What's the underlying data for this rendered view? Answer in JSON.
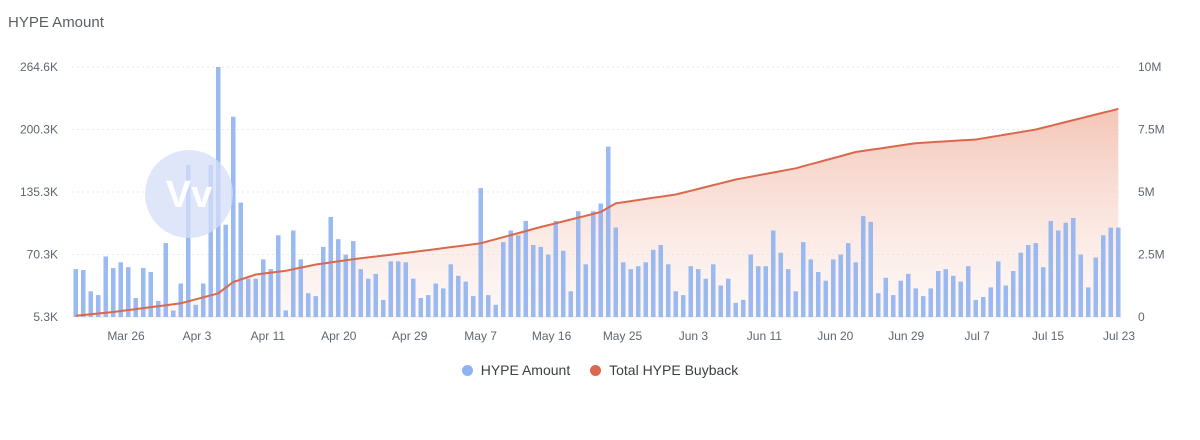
{
  "title": "HYPE Amount",
  "colors": {
    "bar": "#8fb2f0",
    "line": "#d9694d",
    "area_top": "#f3c0b0",
    "grid": "#e6e8ec"
  },
  "legend": {
    "bar_label": "HYPE Amount",
    "line_label": "Total HYPE Buyback"
  },
  "chart_data": {
    "type": "bar+line",
    "title": "HYPE Amount",
    "categories_ticks": [
      "Mar 26",
      "Apr 3",
      "Apr 11",
      "Apr 20",
      "Apr 29",
      "May 7",
      "May 16",
      "May 25",
      "Jun 3",
      "Jun 11",
      "Jun 20",
      "Jun 29",
      "Jul 7",
      "Jul 15",
      "Jul 23"
    ],
    "left_axis": {
      "ticks": [
        "5.3K",
        "70.3K",
        "135.3K",
        "200.3K",
        "264.6K"
      ],
      "range": [
        5300,
        264600
      ]
    },
    "right_axis": {
      "ticks": [
        "0",
        "2.5M",
        "5M",
        "7.5M",
        "10M"
      ],
      "range": [
        0,
        10000000
      ]
    },
    "series": [
      {
        "name": "HYPE Amount",
        "type": "bar",
        "axis": "left",
        "values": [
          55000,
          54000,
          32000,
          28000,
          68000,
          56000,
          62000,
          57000,
          25000,
          56000,
          52000,
          22000,
          82000,
          12000,
          40000,
          163000,
          18000,
          40000,
          163000,
          264600,
          101000,
          213000,
          124000,
          45000,
          45000,
          65000,
          55000,
          90000,
          12000,
          95000,
          65000,
          30000,
          27000,
          78000,
          109000,
          86000,
          70000,
          84000,
          55000,
          45000,
          50000,
          23000,
          63000,
          63000,
          62000,
          45000,
          25000,
          28000,
          40000,
          35000,
          60000,
          48000,
          42000,
          27000,
          139000,
          28000,
          18000,
          83000,
          95000,
          90000,
          105000,
          80000,
          78000,
          70000,
          105000,
          74000,
          32000,
          115000,
          60000,
          115000,
          123000,
          182000,
          98000,
          62000,
          55000,
          58000,
          62000,
          75000,
          80000,
          60000,
          32000,
          28000,
          58000,
          55000,
          45000,
          60000,
          38000,
          45000,
          20000,
          23000,
          70000,
          58000,
          58000,
          95000,
          72000,
          55000,
          32000,
          83000,
          65000,
          52000,
          43000,
          65000,
          70000,
          82000,
          62000,
          110000,
          104000,
          30000,
          46000,
          28000,
          43000,
          50000,
          35000,
          27000,
          35000,
          53000,
          55000,
          48000,
          42000,
          58000,
          23000,
          26000,
          36000,
          63000,
          38000,
          53000,
          72000,
          80000,
          82000,
          57000,
          105000,
          95000,
          103000,
          108000,
          70000,
          36000,
          67000,
          90000,
          98000,
          98000
        ]
      },
      {
        "name": "Total HYPE Buyback",
        "type": "area-line",
        "axis": "right",
        "points": [
          {
            "i": 0,
            "v": 50000
          },
          {
            "i": 5,
            "v": 200000
          },
          {
            "i": 14,
            "v": 550000
          },
          {
            "i": 19,
            "v": 950000
          },
          {
            "i": 21,
            "v": 1400000
          },
          {
            "i": 24,
            "v": 1700000
          },
          {
            "i": 28,
            "v": 1850000
          },
          {
            "i": 32,
            "v": 2100000
          },
          {
            "i": 38,
            "v": 2350000
          },
          {
            "i": 45,
            "v": 2600000
          },
          {
            "i": 54,
            "v": 2950000
          },
          {
            "i": 62,
            "v": 3600000
          },
          {
            "i": 70,
            "v": 4200000
          },
          {
            "i": 72,
            "v": 4550000
          },
          {
            "i": 80,
            "v": 4900000
          },
          {
            "i": 88,
            "v": 5500000
          },
          {
            "i": 96,
            "v": 5950000
          },
          {
            "i": 104,
            "v": 6600000
          },
          {
            "i": 112,
            "v": 6950000
          },
          {
            "i": 120,
            "v": 7100000
          },
          {
            "i": 128,
            "v": 7500000
          },
          {
            "i": 136,
            "v": 8100000
          },
          {
            "i": 140,
            "v": 8400000
          }
        ]
      }
    ],
    "xlabel": "",
    "ylabel": "",
    "legend_position": "bottom-center"
  }
}
